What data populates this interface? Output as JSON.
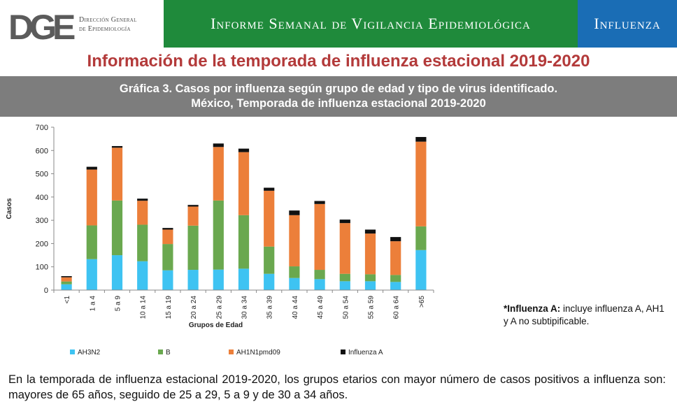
{
  "header": {
    "logo_letters": "DGE",
    "logo_line1": "Dirección General",
    "logo_line2": "de Epidemiología",
    "band_title": "Informe Semanal de Vigilancia Epidemiológica",
    "band_topic": "Influenza"
  },
  "section_title": "Información de la temporada de influenza estacional 2019-2020",
  "chart_heading": {
    "line1": "Gráfica 3. Casos por influenza según grupo de edad y tipo de virus identificado.",
    "line2": "México, Temporada de influenza estacional 2019-2020"
  },
  "chart_data": {
    "type": "bar",
    "stacked": true,
    "title": "Gráfica 3. Casos por influenza según grupo de edad y tipo de virus identificado. México, Temporada de influenza estacional 2019-2020",
    "xlabel": "Grupos de Edad",
    "ylabel": "Casos",
    "ylim": [
      0,
      700
    ],
    "yticks": [
      0,
      100,
      200,
      300,
      400,
      500,
      600,
      700
    ],
    "categories": [
      "<1",
      "1 a 4",
      "5 a 9",
      "10 a 14",
      "15 a 19",
      "20 a 24",
      "25 a 29",
      "30 a 34",
      "35 a 39",
      "40 a 44",
      "45 a 49",
      "50 a 54",
      "55 a 59",
      "60 a 64",
      ">65"
    ],
    "series": [
      {
        "name": "AH3N2",
        "color": "#3ec3f2",
        "values": [
          25,
          133,
          150,
          124,
          85,
          87,
          88,
          92,
          70,
          52,
          47,
          38,
          38,
          35,
          172
        ]
      },
      {
        "name": "B",
        "color": "#6aa84f",
        "values": [
          12,
          145,
          235,
          157,
          113,
          190,
          297,
          230,
          117,
          50,
          40,
          32,
          30,
          30,
          102
        ]
      },
      {
        "name": "AH1N1pmd09",
        "color": "#ec7f3a",
        "values": [
          18,
          240,
          227,
          103,
          62,
          82,
          230,
          271,
          240,
          220,
          283,
          218,
          175,
          145,
          364
        ]
      },
      {
        "name": "Influenza A",
        "color": "#111111",
        "values": [
          5,
          12,
          7,
          9,
          7,
          7,
          15,
          15,
          13,
          20,
          13,
          15,
          17,
          18,
          20
        ]
      }
    ],
    "legend_position": "bottom"
  },
  "footnote": {
    "label": "*Influenza A:",
    "text": " incluye influenza A, AH1 y A no subtipificable."
  },
  "summary": "En la temporada de influenza estacional 2019-2020, los grupos etarios con mayor número de casos positivos a influenza son: mayores de 65 años, seguido de 25 a 29, 5 a 9 y de 30 a 34 años."
}
